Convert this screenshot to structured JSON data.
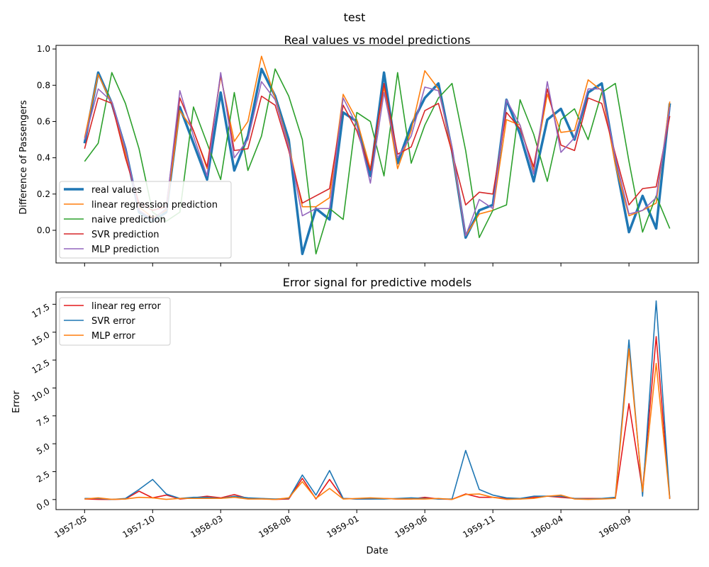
{
  "figure": {
    "suptitle": "test"
  },
  "chart_data": [
    {
      "type": "line",
      "title": "Real values vs model predictions",
      "xlabel": "",
      "ylabel": "Difference of Passengers",
      "ylim": [
        -0.18,
        1.02
      ],
      "y_ticks": [
        "0.0",
        "0.2",
        "0.4",
        "0.6",
        "0.8",
        "1.0"
      ],
      "x_ticks": [
        "1957-05",
        "1957-10",
        "1958-03",
        "1958-08",
        "1959-01",
        "1959-06",
        "1959-11",
        "1960-04",
        "1960-09"
      ],
      "x_tick_labels_visible": false,
      "legend_position": "lower-left",
      "grid": false,
      "x_months_from_start": [
        0,
        1,
        2,
        3,
        4,
        5,
        6,
        7,
        8,
        9,
        10,
        11,
        12,
        13,
        14,
        15,
        16,
        17,
        18,
        19,
        20,
        21,
        22,
        23,
        24,
        25,
        26,
        27,
        28,
        29,
        30,
        31,
        32,
        33,
        34,
        35,
        36,
        37,
        38,
        39,
        40,
        41,
        42,
        43
      ],
      "series": [
        {
          "name": "real values",
          "color": "#1f77b4",
          "width": 3.5,
          "values": [
            0.48,
            0.87,
            0.7,
            0.45,
            0.1,
            0.05,
            0.1,
            0.68,
            0.48,
            0.28,
            0.76,
            0.33,
            0.52,
            0.89,
            0.74,
            0.5,
            -0.13,
            0.12,
            0.06,
            0.65,
            0.6,
            0.3,
            0.87,
            0.37,
            0.58,
            0.73,
            0.81,
            0.44,
            -0.04,
            0.11,
            0.14,
            0.72,
            0.53,
            0.27,
            0.61,
            0.67,
            0.5,
            0.76,
            0.81,
            0.38,
            -0.01,
            0.19,
            0.01,
            0.7
          ]
        },
        {
          "name": "linear regression prediction",
          "color": "#ff7f0e",
          "width": 1.6,
          "values": [
            0.51,
            0.86,
            0.7,
            0.42,
            0.13,
            0.07,
            0.11,
            0.66,
            0.55,
            0.34,
            0.85,
            0.49,
            0.6,
            0.96,
            0.73,
            0.47,
            0.13,
            0.13,
            0.18,
            0.75,
            0.61,
            0.34,
            0.79,
            0.34,
            0.55,
            0.88,
            0.78,
            0.44,
            -0.03,
            0.09,
            0.11,
            0.61,
            0.58,
            0.33,
            0.75,
            0.54,
            0.55,
            0.83,
            0.77,
            0.36,
            0.08,
            0.11,
            0.15,
            0.71
          ]
        },
        {
          "name": "naive prediction",
          "color": "#2ca02c",
          "width": 1.6,
          "values": [
            0.38,
            0.48,
            0.87,
            0.7,
            0.45,
            0.1,
            0.05,
            0.1,
            0.68,
            0.48,
            0.28,
            0.76,
            0.33,
            0.52,
            0.89,
            0.74,
            0.5,
            -0.13,
            0.12,
            0.06,
            0.65,
            0.6,
            0.3,
            0.87,
            0.37,
            0.58,
            0.73,
            0.81,
            0.44,
            -0.04,
            0.11,
            0.14,
            0.72,
            0.53,
            0.27,
            0.61,
            0.67,
            0.5,
            0.76,
            0.81,
            0.38,
            -0.01,
            0.19,
            0.01
          ]
        },
        {
          "name": "SVR prediction",
          "color": "#d62728",
          "width": 1.6,
          "values": [
            0.45,
            0.73,
            0.7,
            0.4,
            0.15,
            0.11,
            0.13,
            0.73,
            0.55,
            0.35,
            0.86,
            0.44,
            0.45,
            0.74,
            0.69,
            0.44,
            0.15,
            0.19,
            0.23,
            0.69,
            0.55,
            0.33,
            0.81,
            0.42,
            0.46,
            0.66,
            0.7,
            0.43,
            0.14,
            0.21,
            0.2,
            0.65,
            0.56,
            0.35,
            0.78,
            0.47,
            0.44,
            0.73,
            0.7,
            0.42,
            0.14,
            0.23,
            0.24,
            0.63
          ]
        },
        {
          "name": "MLP prediction",
          "color": "#9467bd",
          "width": 1.6,
          "values": [
            0.5,
            0.78,
            0.71,
            0.45,
            0.11,
            0.06,
            0.12,
            0.77,
            0.52,
            0.3,
            0.87,
            0.4,
            0.5,
            0.82,
            0.72,
            0.46,
            0.08,
            0.12,
            0.12,
            0.73,
            0.58,
            0.26,
            0.76,
            0.4,
            0.52,
            0.79,
            0.77,
            0.46,
            -0.03,
            0.17,
            0.12,
            0.72,
            0.58,
            0.31,
            0.82,
            0.43,
            0.51,
            0.78,
            0.78,
            0.4,
            0.09,
            0.11,
            0.18,
            0.68
          ]
        }
      ]
    },
    {
      "type": "line",
      "title": "Error signal for predictive models",
      "xlabel": "Date",
      "ylabel": "Error",
      "ylim": [
        -0.9,
        18.6
      ],
      "y_ticks": [
        "0.0",
        "2.5",
        "5.0",
        "7.5",
        "10.0",
        "12.5",
        "15.0",
        "17.5"
      ],
      "x_ticks": [
        "1957-05",
        "1957-10",
        "1958-03",
        "1958-08",
        "1959-01",
        "1959-06",
        "1959-11",
        "1960-04",
        "1960-09"
      ],
      "x_tick_labels_visible": true,
      "legend_position": "upper-left",
      "grid": false,
      "x_months_from_start": [
        0,
        1,
        2,
        3,
        4,
        5,
        6,
        7,
        8,
        9,
        10,
        11,
        12,
        13,
        14,
        15,
        16,
        17,
        18,
        19,
        20,
        21,
        22,
        23,
        24,
        25,
        26,
        27,
        28,
        29,
        30,
        31,
        32,
        33,
        34,
        35,
        36,
        37,
        38,
        39,
        40,
        41,
        42,
        43
      ],
      "series": [
        {
          "name": "linear reg error",
          "color": "#e41a1c",
          "width": 1.6,
          "values": [
            0.05,
            0.02,
            0.01,
            0.05,
            0.75,
            0.15,
            0.4,
            0.05,
            0.15,
            0.3,
            0.15,
            0.45,
            0.1,
            0.08,
            0.02,
            0.05,
            1.9,
            0.05,
            1.8,
            0.1,
            0.05,
            0.05,
            0.1,
            0.05,
            0.05,
            0.2,
            0.05,
            0.02,
            0.5,
            0.2,
            0.2,
            0.1,
            0.05,
            0.2,
            0.3,
            0.2,
            0.1,
            0.1,
            0.1,
            0.1,
            8.6,
            0.8,
            14.6,
            0.05
          ]
        },
        {
          "name": "SVR error",
          "color": "#1f77b4",
          "width": 1.6,
          "values": [
            0.1,
            0.1,
            0.01,
            0.1,
            0.9,
            1.8,
            0.5,
            0.1,
            0.2,
            0.2,
            0.1,
            0.3,
            0.15,
            0.1,
            0.05,
            0.1,
            2.2,
            0.4,
            2.6,
            0.1,
            0.05,
            0.05,
            0.05,
            0.1,
            0.15,
            0.1,
            0.05,
            0.05,
            4.4,
            0.9,
            0.4,
            0.15,
            0.1,
            0.3,
            0.3,
            0.3,
            0.1,
            0.05,
            0.1,
            0.2,
            14.3,
            0.3,
            17.8,
            0.1
          ]
        },
        {
          "name": "MLP error",
          "color": "#ff7f0e",
          "width": 1.6,
          "values": [
            0.05,
            0.15,
            0.02,
            0.05,
            0.2,
            0.15,
            0.02,
            0.1,
            0.1,
            0.1,
            0.1,
            0.2,
            0.05,
            0.05,
            0.01,
            0.15,
            1.6,
            0.1,
            1.0,
            0.05,
            0.1,
            0.15,
            0.1,
            0.05,
            0.05,
            0.05,
            0.1,
            0.01,
            0.45,
            0.5,
            0.2,
            0.02,
            0.05,
            0.1,
            0.3,
            0.4,
            0.05,
            0.02,
            0.05,
            0.1,
            13.5,
            0.7,
            12.2,
            0.05
          ]
        }
      ]
    }
  ]
}
